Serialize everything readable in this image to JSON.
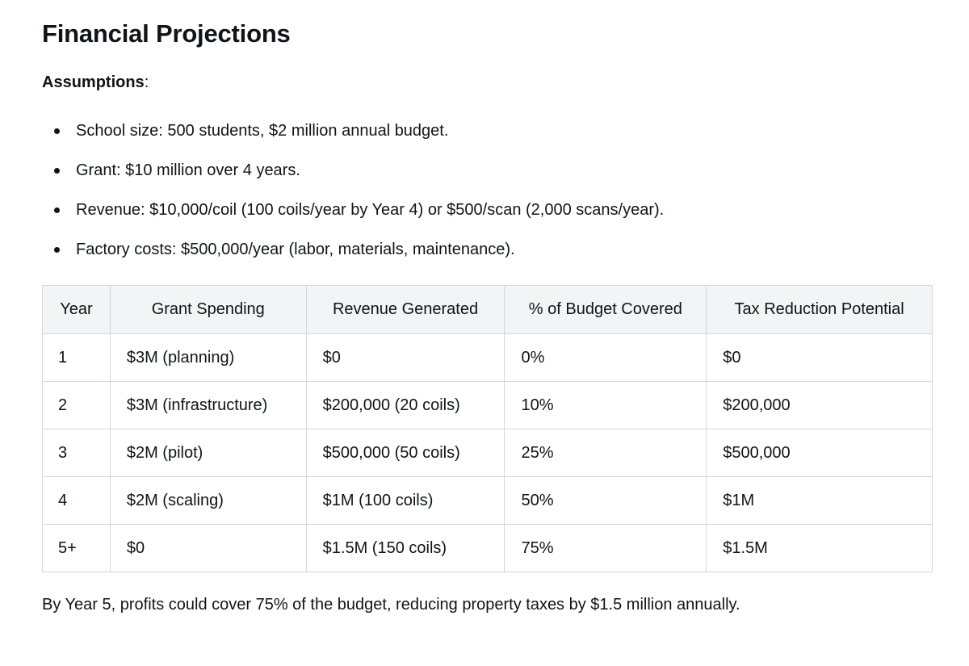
{
  "title": "Financial Projections",
  "assumptions": {
    "label": "Assumptions",
    "colon": ":",
    "items": [
      "School size: 500 students, $2 million annual budget.",
      "Grant: $10 million over 4 years.",
      "Revenue: $10,000/coil (100 coils/year by Year 4) or $500/scan (2,000 scans/year).",
      "Factory costs: $500,000/year (labor, materials, maintenance)."
    ]
  },
  "table": {
    "headers": [
      "Year",
      "Grant Spending",
      "Revenue Generated",
      "% of Budget Covered",
      "Tax Reduction Potential"
    ],
    "rows": [
      [
        "1",
        "$3M (planning)",
        "$0",
        "0%",
        "$0"
      ],
      [
        "2",
        "$3M (infrastructure)",
        "$200,000 (20 coils)",
        "10%",
        "$200,000"
      ],
      [
        "3",
        "$2M (pilot)",
        "$500,000 (50 coils)",
        "25%",
        "$500,000"
      ],
      [
        "4",
        "$2M (scaling)",
        "$1M (100 coils)",
        "50%",
        "$1M"
      ],
      [
        "5+",
        "$0",
        "$1.5M (150 coils)",
        "75%",
        "$1.5M"
      ]
    ]
  },
  "conclusion": "By Year 5, profits could cover 75% of the budget, reducing property taxes by $1.5 million annually."
}
